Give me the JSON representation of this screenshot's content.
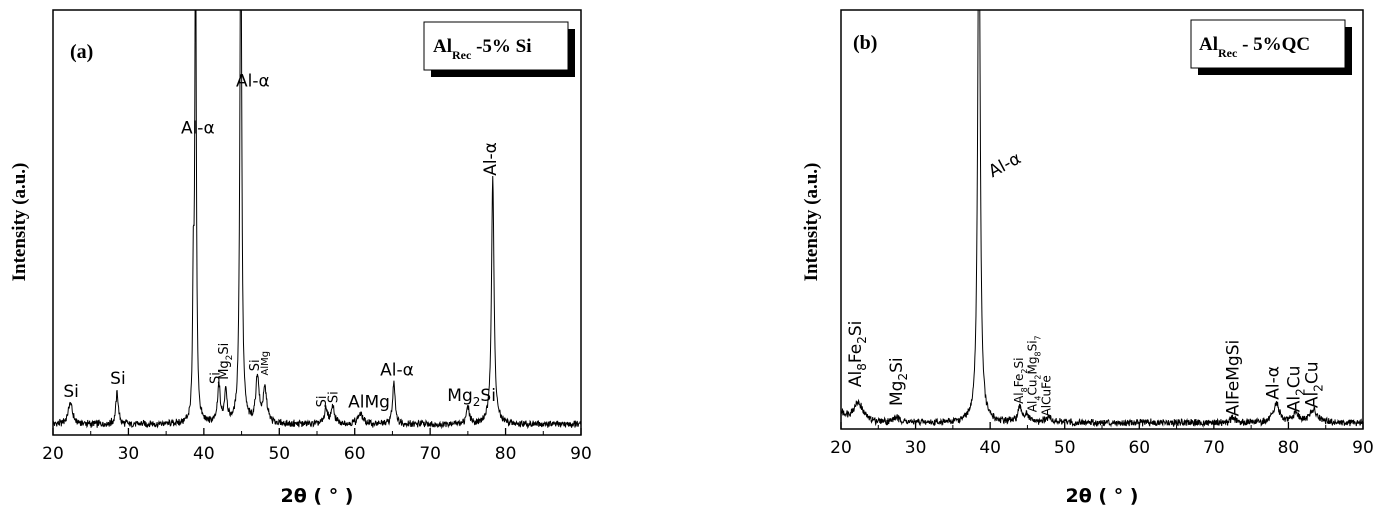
{
  "chart_data": [
    {
      "type": "line",
      "panel_label": "(a)",
      "legend": {
        "main": "Al",
        "sub": "Rec",
        "rest": " -5% Si"
      },
      "xlabel": {
        "main": "2θ",
        "rest": " ( ° )"
      },
      "ylabel": "Intensity (a.u.)",
      "xlim": [
        20,
        90
      ],
      "xticks": [
        20,
        30,
        40,
        50,
        60,
        70,
        80,
        90
      ],
      "ylim": [
        0,
        100
      ],
      "baseline": 2.5,
      "peaks": [
        {
          "x": 22.3,
          "h": 5,
          "w": 0.35
        },
        {
          "x": 28.5,
          "h": 7.5,
          "w": 0.2
        },
        {
          "x": 38.6,
          "h": 30,
          "w": 0.1
        },
        {
          "x": 38.9,
          "h": 118,
          "w": 0.12
        },
        {
          "x": 42.0,
          "h": 9,
          "w": 0.2
        },
        {
          "x": 42.9,
          "h": 8,
          "w": 0.2
        },
        {
          "x": 44.9,
          "h": 125,
          "w": 0.15
        },
        {
          "x": 47.1,
          "h": 11,
          "w": 0.25
        },
        {
          "x": 48.1,
          "h": 8,
          "w": 0.3
        },
        {
          "x": 56.2,
          "h": 3.5,
          "w": 0.25
        },
        {
          "x": 57.1,
          "h": 4,
          "w": 0.25
        },
        {
          "x": 60.7,
          "h": 2.5,
          "w": 0.4
        },
        {
          "x": 65.2,
          "h": 10,
          "w": 0.2
        },
        {
          "x": 75.0,
          "h": 4,
          "w": 0.25
        },
        {
          "x": 78.3,
          "h": 58,
          "w": 0.2
        }
      ],
      "annotations": [
        {
          "parts": [
            {
              "t": "Si"
            }
          ],
          "x": 22.4,
          "y": 9,
          "rot": 0,
          "size": 17
        },
        {
          "parts": [
            {
              "t": "Si"
            }
          ],
          "x": 28.6,
          "y": 12,
          "rot": 0,
          "size": 17
        },
        {
          "parts": [
            {
              "t": "Al-α"
            }
          ],
          "x": 39.2,
          "y": 71,
          "rot": 0,
          "size": 17
        },
        {
          "parts": [
            {
              "t": "Al-α"
            }
          ],
          "x": 46.5,
          "y": 82,
          "rot": 0,
          "size": 17
        },
        {
          "parts": [
            {
              "t": "Si"
            }
          ],
          "x": 42.1,
          "y": 12,
          "rot": -90,
          "size": 13
        },
        {
          "parts": [
            {
              "t": "Mg"
            },
            {
              "t": "2",
              "sub": true
            },
            {
              "t": "Si"
            }
          ],
          "x": 43.2,
          "y": 13,
          "rot": -90,
          "size": 13
        },
        {
          "parts": [
            {
              "t": "Si"
            }
          ],
          "x": 47.3,
          "y": 15,
          "rot": -90,
          "size": 13
        },
        {
          "parts": [
            {
              "t": "AlMg"
            }
          ],
          "x": 48.5,
          "y": 14,
          "rot": -90,
          "size": 10
        },
        {
          "parts": [
            {
              "t": "Si"
            }
          ],
          "x": 56.2,
          "y": 6.5,
          "rot": -90,
          "size": 13
        },
        {
          "parts": [
            {
              "t": "Si"
            }
          ],
          "x": 57.7,
          "y": 7.5,
          "rot": -90,
          "size": 13
        },
        {
          "parts": [
            {
              "t": "AlMg"
            }
          ],
          "x": 61.9,
          "y": 6.5,
          "rot": 0,
          "size": 17
        },
        {
          "parts": [
            {
              "t": "Al-α"
            }
          ],
          "x": 65.6,
          "y": 14,
          "rot": 0,
          "size": 17
        },
        {
          "parts": [
            {
              "t": "Mg"
            },
            {
              "t": "2",
              "sub": true
            },
            {
              "t": "Si"
            }
          ],
          "x": 75.5,
          "y": 8,
          "rot": 0,
          "size": 17
        },
        {
          "parts": [
            {
              "t": "Al-α"
            }
          ],
          "x": 78.7,
          "y": 61,
          "rot": -90,
          "size": 17
        }
      ]
    },
    {
      "type": "line",
      "panel_label": "(b)",
      "legend": {
        "main": "Al",
        "sub": "Rec",
        "rest": " - 5%QC"
      },
      "xlabel": {
        "main": "2θ",
        "rest": " ( ° )"
      },
      "ylabel": "Intensity (a.u.)",
      "xlim": [
        20,
        90
      ],
      "xticks": [
        20,
        30,
        40,
        50,
        60,
        70,
        80,
        90
      ],
      "ylim": [
        0,
        100
      ],
      "baseline": 1.5,
      "peaks": [
        {
          "x": 20.0,
          "h": 2,
          "w": 0.9
        },
        {
          "x": 22.3,
          "h": 4.5,
          "w": 0.8
        },
        {
          "x": 27.4,
          "h": 1,
          "w": 0.5
        },
        {
          "x": 38.5,
          "h": 130,
          "w": 0.2
        },
        {
          "x": 44.0,
          "h": 3.5,
          "w": 0.3
        },
        {
          "x": 44.9,
          "h": 1.5,
          "w": 0.4
        },
        {
          "x": 47.8,
          "h": 1.2,
          "w": 0.5
        },
        {
          "x": 72.5,
          "h": 1,
          "w": 0.4
        },
        {
          "x": 78.4,
          "h": 4.5,
          "w": 0.45
        },
        {
          "x": 81.0,
          "h": 2,
          "w": 0.5
        },
        {
          "x": 83.3,
          "h": 3,
          "w": 0.6
        }
      ],
      "annotations": [
        {
          "parts": [
            {
              "t": "Al"
            },
            {
              "t": "8",
              "sub": true
            },
            {
              "t": "Fe"
            },
            {
              "t": "2",
              "sub": true
            },
            {
              "t": "Si"
            }
          ],
          "x": 22.7,
          "y": 10,
          "rot": -90,
          "size": 17
        },
        {
          "parts": [
            {
              "t": "Mg"
            },
            {
              "t": "2",
              "sub": true
            },
            {
              "t": "Si"
            }
          ],
          "x": 28.2,
          "y": 5.5,
          "rot": -90,
          "size": 17
        },
        {
          "parts": [
            {
              "t": "Al-α"
            }
          ],
          "x": 40.3,
          "y": 60,
          "rot": -28,
          "size": 17
        },
        {
          "parts": [
            {
              "t": "Al"
            },
            {
              "t": "8",
              "sub": true
            },
            {
              "t": "Fe"
            },
            {
              "t": "2",
              "sub": true
            },
            {
              "t": "Si"
            }
          ],
          "x": 44.4,
          "y": 6,
          "rot": -90,
          "size": 12
        },
        {
          "parts": [
            {
              "t": "Al"
            },
            {
              "t": "4",
              "sub": true
            },
            {
              "t": "Cu"
            },
            {
              "t": "2",
              "sub": true
            },
            {
              "t": "Mg"
            },
            {
              "t": "8",
              "sub": true
            },
            {
              "t": "Si"
            },
            {
              "t": "7",
              "sub": true
            }
          ],
          "x": 46.2,
          "y": 4,
          "rot": -90,
          "size": 12
        },
        {
          "parts": [
            {
              "t": "AlCuFe"
            }
          ],
          "x": 48.1,
          "y": 3,
          "rot": -90,
          "size": 12
        },
        {
          "parts": [
            {
              "t": "AlFeMgSi"
            }
          ],
          "x": 73.3,
          "y": 3,
          "rot": -90,
          "size": 17
        },
        {
          "parts": [
            {
              "t": "Al-α"
            }
          ],
          "x": 78.7,
          "y": 7,
          "rot": -90,
          "size": 17
        },
        {
          "parts": [
            {
              "t": "Al"
            },
            {
              "t": "2",
              "sub": true
            },
            {
              "t": "Cu"
            }
          ],
          "x": 81.5,
          "y": 4,
          "rot": -90,
          "size": 17
        },
        {
          "parts": [
            {
              "t": "Al"
            },
            {
              "t": "2",
              "sub": true
            },
            {
              "t": "Cu"
            }
          ],
          "x": 83.9,
          "y": 5,
          "rot": -90,
          "size": 17
        }
      ]
    }
  ]
}
